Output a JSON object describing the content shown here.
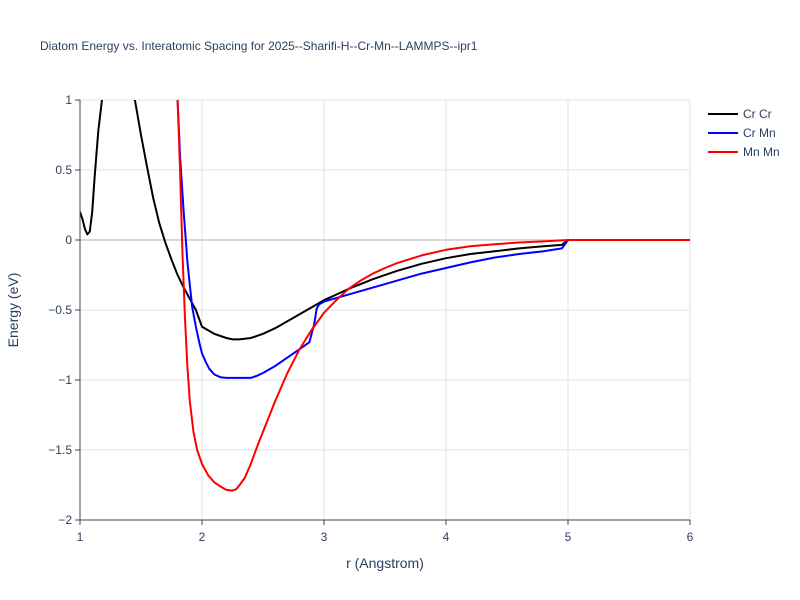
{
  "chart_data": {
    "type": "line",
    "title": "Diatom Energy vs. Interatomic Spacing for 2025--Sharifi-H--Cr-Mn--LAMMPS--ipr1",
    "xlabel": "r (Angstrom)",
    "ylabel": "Energy (eV)",
    "xlim": [
      1,
      6
    ],
    "ylim": [
      -2,
      1
    ],
    "x_ticks": [
      1,
      2,
      3,
      4,
      5,
      6
    ],
    "y_ticks": [
      1,
      0.5,
      0,
      -0.5,
      -1,
      -1.5,
      -2
    ],
    "x_tick_labels": [
      "1",
      "2",
      "3",
      "4",
      "5",
      "6"
    ],
    "y_tick_labels": [
      "1",
      "0.5",
      "0",
      "−0.5",
      "−1",
      "−1.5",
      "−2"
    ],
    "grid": true,
    "legend_position": "top-right",
    "series": [
      {
        "name": "Cr Cr",
        "color": "#000000",
        "x": [
          1.0,
          1.02,
          1.04,
          1.06,
          1.08,
          1.1,
          1.12,
          1.15,
          1.18,
          1.2,
          1.45,
          1.5,
          1.55,
          1.6,
          1.65,
          1.7,
          1.75,
          1.8,
          1.85,
          1.9,
          1.95,
          2.0,
          2.1,
          2.2,
          2.25,
          2.3,
          2.35,
          2.4,
          2.5,
          2.6,
          2.7,
          2.8,
          2.9,
          3.0,
          3.1,
          3.2,
          3.4,
          3.6,
          3.8,
          4.0,
          4.2,
          4.4,
          4.6,
          4.8,
          4.95,
          5.0,
          5.5,
          6.0
        ],
        "y": [
          0.2,
          0.15,
          0.08,
          0.04,
          0.06,
          0.2,
          0.45,
          0.78,
          1.0,
          1.2,
          1.0,
          0.75,
          0.52,
          0.3,
          0.12,
          -0.02,
          -0.14,
          -0.25,
          -0.34,
          -0.42,
          -0.5,
          -0.62,
          -0.67,
          -0.7,
          -0.71,
          -0.71,
          -0.705,
          -0.7,
          -0.67,
          -0.63,
          -0.58,
          -0.53,
          -0.48,
          -0.43,
          -0.39,
          -0.35,
          -0.28,
          -0.22,
          -0.17,
          -0.13,
          -0.1,
          -0.08,
          -0.06,
          -0.045,
          -0.035,
          0.0,
          0.0,
          0.0
        ]
      },
      {
        "name": "Cr Mn",
        "color": "#0000ff",
        "x": [
          1.8,
          1.82,
          1.85,
          1.88,
          1.9,
          1.92,
          1.95,
          1.98,
          2.0,
          2.03,
          2.06,
          2.1,
          2.15,
          2.2,
          2.3,
          2.4,
          2.45,
          2.5,
          2.6,
          2.7,
          2.8,
          2.88,
          2.92,
          2.94,
          2.96,
          3.0,
          3.2,
          3.4,
          3.6,
          3.8,
          4.0,
          4.2,
          4.4,
          4.6,
          4.8,
          4.95,
          5.0,
          5.5,
          6.0
        ],
        "y": [
          1.0,
          0.6,
          0.2,
          -0.15,
          -0.32,
          -0.48,
          -0.62,
          -0.74,
          -0.81,
          -0.87,
          -0.92,
          -0.96,
          -0.98,
          -0.985,
          -0.985,
          -0.985,
          -0.97,
          -0.95,
          -0.9,
          -0.84,
          -0.78,
          -0.73,
          -0.6,
          -0.49,
          -0.46,
          -0.44,
          -0.39,
          -0.34,
          -0.29,
          -0.24,
          -0.2,
          -0.16,
          -0.125,
          -0.1,
          -0.08,
          -0.06,
          0.0,
          0.0,
          0.0
        ]
      },
      {
        "name": "Mn Mn",
        "color": "#ff0000",
        "x": [
          1.8,
          1.82,
          1.84,
          1.86,
          1.88,
          1.9,
          1.93,
          1.96,
          2.0,
          2.05,
          2.1,
          2.15,
          2.2,
          2.25,
          2.28,
          2.3,
          2.35,
          2.4,
          2.45,
          2.5,
          2.6,
          2.7,
          2.8,
          2.9,
          3.0,
          3.1,
          3.2,
          3.3,
          3.4,
          3.5,
          3.6,
          3.8,
          4.0,
          4.2,
          4.4,
          4.6,
          4.8,
          5.0,
          5.5,
          6.0
        ],
        "y": [
          1.0,
          0.5,
          -0.1,
          -0.55,
          -0.9,
          -1.15,
          -1.37,
          -1.5,
          -1.6,
          -1.68,
          -1.73,
          -1.76,
          -1.785,
          -1.79,
          -1.78,
          -1.76,
          -1.7,
          -1.6,
          -1.48,
          -1.37,
          -1.15,
          -0.95,
          -0.78,
          -0.64,
          -0.52,
          -0.43,
          -0.35,
          -0.29,
          -0.24,
          -0.2,
          -0.165,
          -0.11,
          -0.07,
          -0.045,
          -0.03,
          -0.018,
          -0.01,
          0.0,
          0.0,
          0.0
        ]
      }
    ]
  }
}
